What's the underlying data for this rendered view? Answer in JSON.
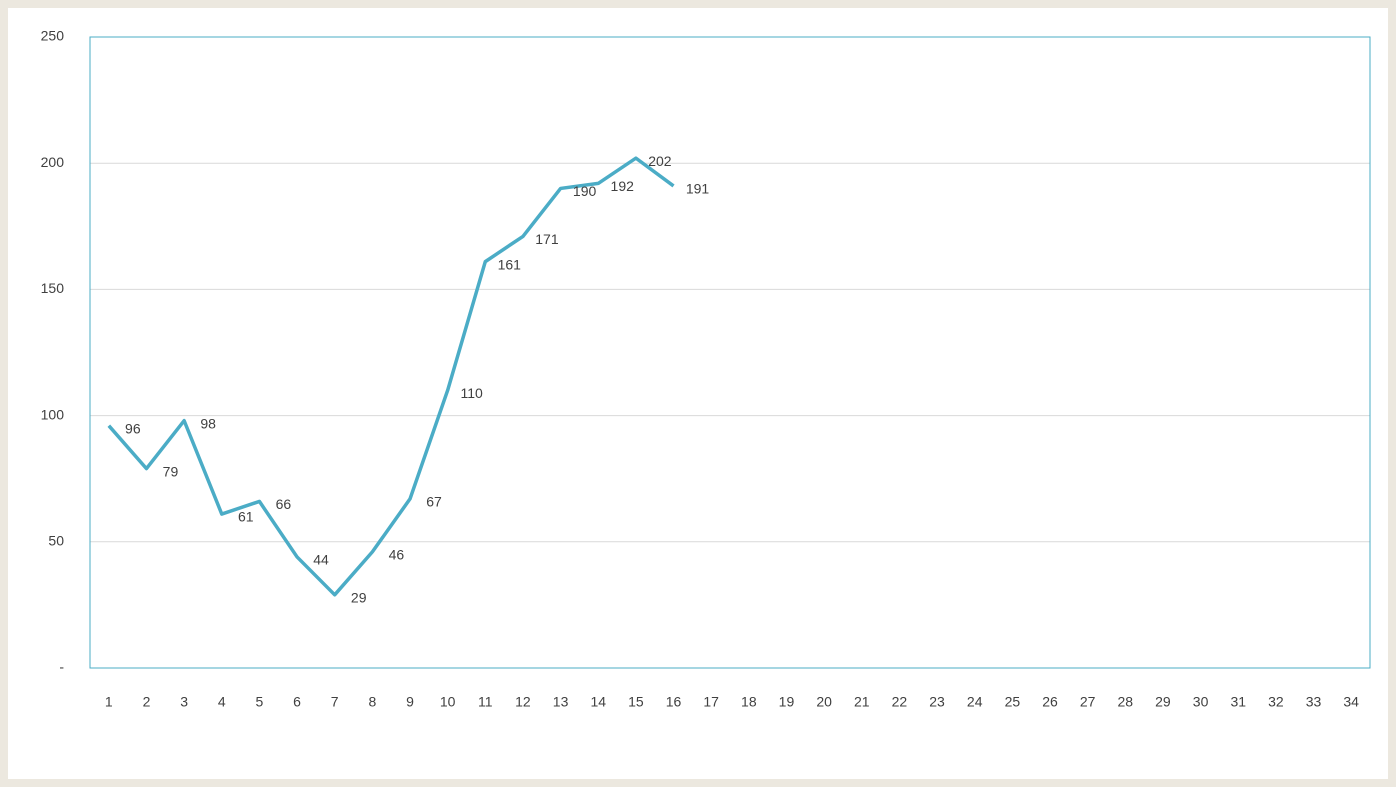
{
  "chart_data": {
    "type": "line",
    "categories": [
      "1",
      "2",
      "3",
      "4",
      "5",
      "6",
      "7",
      "8",
      "9",
      "10",
      "11",
      "12",
      "13",
      "14",
      "15",
      "16",
      "17",
      "18",
      "19",
      "20",
      "21",
      "22",
      "23",
      "24",
      "25",
      "26",
      "27",
      "28",
      "29",
      "30",
      "31",
      "32",
      "33",
      "34"
    ],
    "values": [
      96,
      79,
      98,
      61,
      66,
      44,
      29,
      46,
      67,
      110,
      161,
      171,
      190,
      192,
      202,
      191,
      null,
      null,
      null,
      null,
      null,
      null,
      null,
      null,
      null,
      null,
      null,
      null,
      null,
      null,
      null,
      null,
      null,
      null
    ],
    "color": "#4bacc6",
    "ylim": [
      0,
      250
    ],
    "yticks": [
      {
        "value": 0,
        "label": "-"
      },
      50,
      100,
      150,
      200,
      250
    ],
    "grid": true,
    "data_labels": true
  }
}
